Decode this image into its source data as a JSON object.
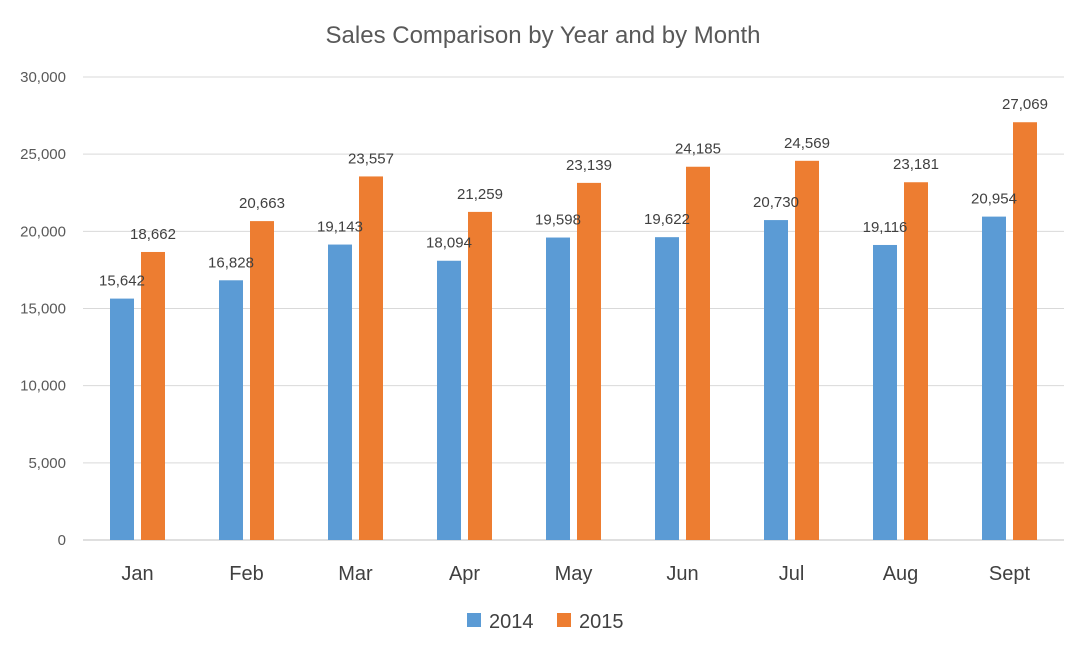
{
  "chart_data": {
    "type": "bar",
    "title": "Sales Comparison by Year and by Month",
    "xlabel": "",
    "ylabel": "",
    "categories": [
      "Jan",
      "Feb",
      "Mar",
      "Apr",
      "May",
      "Jun",
      "Jul",
      "Aug",
      "Sept"
    ],
    "series": [
      {
        "name": "2014",
        "color": "#5B9BD5",
        "values": [
          15642,
          16828,
          19143,
          18094,
          19598,
          19622,
          20730,
          19116,
          20954
        ]
      },
      {
        "name": "2015",
        "color": "#ED7D31",
        "values": [
          18662,
          20663,
          23557,
          21259,
          23139,
          24185,
          24569,
          23181,
          27069
        ]
      }
    ],
    "ylim": [
      0,
      30000
    ],
    "yticks": [
      0,
      5000,
      10000,
      15000,
      20000,
      25000,
      30000
    ],
    "ytick_labels": [
      "0",
      "5,000",
      "10,000",
      "15,000",
      "20,000",
      "25,000",
      "30,000"
    ],
    "data_labels": true,
    "grid": true,
    "legend_position": "bottom"
  }
}
